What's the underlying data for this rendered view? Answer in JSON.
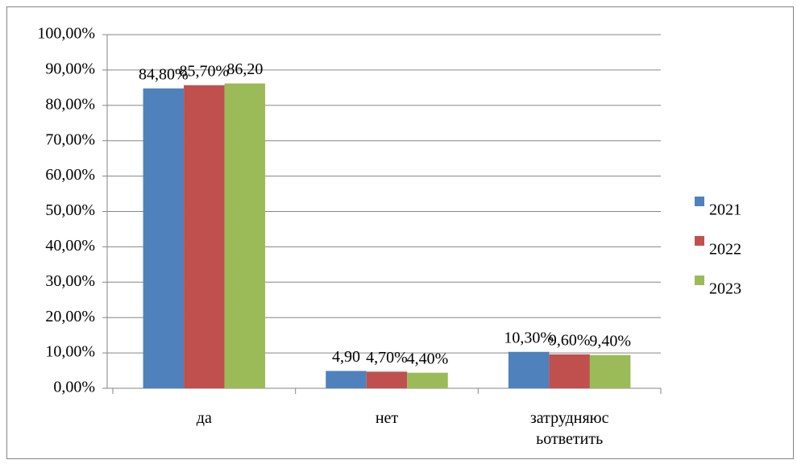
{
  "chart_data": {
    "type": "bar",
    "categories": [
      "да",
      "нет",
      "затрудняюс ьответить"
    ],
    "series": [
      {
        "name": "2021",
        "color": "#4f81bd",
        "values": [
          84.8,
          4.9,
          10.3
        ],
        "value_labels": [
          "84,80%",
          "4,90",
          "10,30%"
        ]
      },
      {
        "name": "2022",
        "color": "#c0504d",
        "values": [
          85.7,
          4.7,
          9.6
        ],
        "value_labels": [
          "85,70%",
          "4,70%",
          "9,60%"
        ]
      },
      {
        "name": "2023",
        "color": "#9bbb59",
        "values": [
          86.2,
          4.4,
          9.4
        ],
        "value_labels": [
          "86,20",
          "4,40%",
          "9,40%"
        ]
      }
    ],
    "ylim": [
      0,
      100
    ],
    "yticks": [
      {
        "value": 0,
        "label": "0,00%"
      },
      {
        "value": 10,
        "label": "10,00%"
      },
      {
        "value": 20,
        "label": "20,00%"
      },
      {
        "value": 30,
        "label": "30,00%"
      },
      {
        "value": 40,
        "label": "40,00%"
      },
      {
        "value": 50,
        "label": "50,00%"
      },
      {
        "value": 60,
        "label": "60,00%"
      },
      {
        "value": 70,
        "label": "70,00%"
      },
      {
        "value": 80,
        "label": "80,00%"
      },
      {
        "value": 90,
        "label": "90,00%"
      },
      {
        "value": 100,
        "label": "100,00%"
      }
    ],
    "grid": true,
    "legend": "right"
  }
}
